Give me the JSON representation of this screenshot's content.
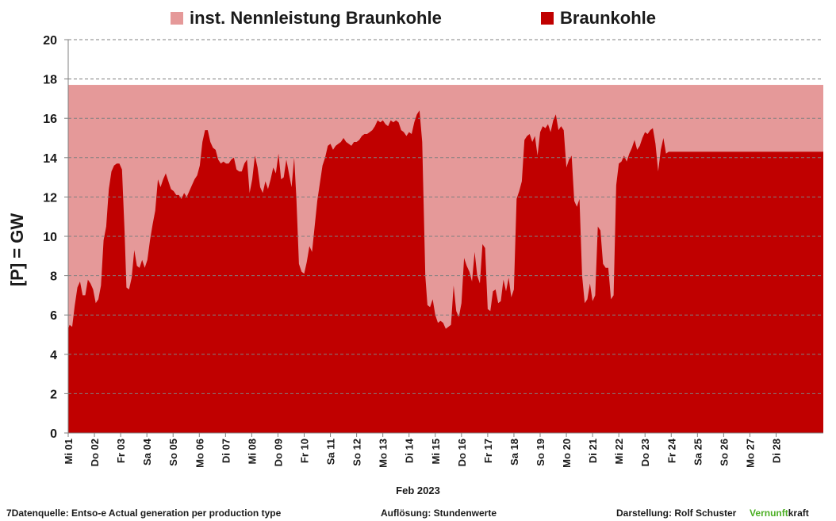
{
  "legend": {
    "capacity_label": "inst. Nennleistung Braunkohle",
    "generation_label": "Braunkohle",
    "capacity_color": "#e59999",
    "generation_color": "#c00000"
  },
  "footer": {
    "source": "7Datenquelle: Entso-e  Actual generation per production type",
    "resolution": "Auflösung: Stundenwerte",
    "author": "Darstellung:  Rolf Schuster",
    "brand_green": "Vernunft",
    "brand_rest": "kraft"
  },
  "chart_data": {
    "type": "area",
    "xlabel": "Feb 2023",
    "ylabel": "[P]   =  GW",
    "ylim": [
      0,
      20
    ],
    "yticks": [
      0,
      2,
      4,
      6,
      8,
      10,
      12,
      14,
      16,
      18,
      20
    ],
    "grid": "horizontal dashed",
    "legend_position": "top",
    "x_days": 28.8,
    "day_labels": [
      "Mi 01",
      "Do 02",
      "Fr 03",
      "Sa 04",
      "So 05",
      "Mo 06",
      "Di 07",
      "Mi 08",
      "Do 09",
      "Fr 10",
      "Sa 11",
      "So 12",
      "Mo 13",
      "Di 14",
      "Mi 15",
      "Do 16",
      "Fr 17",
      "Sa 18",
      "So 19",
      "Mo 20",
      "Di 21",
      "Mi 22",
      "Do 23",
      "Fr 24",
      "Sa 25",
      "So 26",
      "Mo 27",
      "Di 28"
    ],
    "series": [
      {
        "name": "inst. Nennleistung Braunkohle",
        "type": "constant",
        "value": 17.7
      },
      {
        "name": "Braunkohle",
        "x_unit": "days since 2023-02-01 00:00",
        "points": [
          [
            0.0,
            5.3
          ],
          [
            0.05,
            5.5
          ],
          [
            0.15,
            5.4
          ],
          [
            0.25,
            6.5
          ],
          [
            0.35,
            7.4
          ],
          [
            0.45,
            7.7
          ],
          [
            0.55,
            7.0
          ],
          [
            0.65,
            7.0
          ],
          [
            0.75,
            7.8
          ],
          [
            0.85,
            7.6
          ],
          [
            0.95,
            7.3
          ],
          [
            1.05,
            6.6
          ],
          [
            1.15,
            6.8
          ],
          [
            1.25,
            7.5
          ],
          [
            1.35,
            9.8
          ],
          [
            1.45,
            10.5
          ],
          [
            1.55,
            12.4
          ],
          [
            1.65,
            13.3
          ],
          [
            1.75,
            13.6
          ],
          [
            1.85,
            13.7
          ],
          [
            1.95,
            13.7
          ],
          [
            2.05,
            13.4
          ],
          [
            2.15,
            10.2
          ],
          [
            2.22,
            7.4
          ],
          [
            2.32,
            7.3
          ],
          [
            2.42,
            7.9
          ],
          [
            2.52,
            9.3
          ],
          [
            2.62,
            8.5
          ],
          [
            2.72,
            8.4
          ],
          [
            2.82,
            8.8
          ],
          [
            2.92,
            8.4
          ],
          [
            3.02,
            8.8
          ],
          [
            3.12,
            9.8
          ],
          [
            3.22,
            10.6
          ],
          [
            3.32,
            11.3
          ],
          [
            3.42,
            12.9
          ],
          [
            3.52,
            12.5
          ],
          [
            3.62,
            12.9
          ],
          [
            3.72,
            13.2
          ],
          [
            3.82,
            12.8
          ],
          [
            3.92,
            12.4
          ],
          [
            4.02,
            12.3
          ],
          [
            4.12,
            12.1
          ],
          [
            4.22,
            12.1
          ],
          [
            4.32,
            11.9
          ],
          [
            4.42,
            12.2
          ],
          [
            4.52,
            12.0
          ],
          [
            4.62,
            12.3
          ],
          [
            4.72,
            12.6
          ],
          [
            4.82,
            12.9
          ],
          [
            4.92,
            13.1
          ],
          [
            5.02,
            13.6
          ],
          [
            5.12,
            14.8
          ],
          [
            5.22,
            15.4
          ],
          [
            5.32,
            15.4
          ],
          [
            5.42,
            14.8
          ],
          [
            5.52,
            14.5
          ],
          [
            5.62,
            14.4
          ],
          [
            5.72,
            13.9
          ],
          [
            5.82,
            13.7
          ],
          [
            5.92,
            13.8
          ],
          [
            6.02,
            13.7
          ],
          [
            6.12,
            13.7
          ],
          [
            6.22,
            13.9
          ],
          [
            6.32,
            14.0
          ],
          [
            6.42,
            13.4
          ],
          [
            6.52,
            13.3
          ],
          [
            6.62,
            13.3
          ],
          [
            6.72,
            13.7
          ],
          [
            6.82,
            13.9
          ],
          [
            6.92,
            12.2
          ],
          [
            7.02,
            12.9
          ],
          [
            7.12,
            14.1
          ],
          [
            7.22,
            13.5
          ],
          [
            7.32,
            12.5
          ],
          [
            7.42,
            12.2
          ],
          [
            7.52,
            12.8
          ],
          [
            7.62,
            12.4
          ],
          [
            7.72,
            12.9
          ],
          [
            7.82,
            13.5
          ],
          [
            7.92,
            13.2
          ],
          [
            8.02,
            14.2
          ],
          [
            8.12,
            12.9
          ],
          [
            8.22,
            13.0
          ],
          [
            8.32,
            13.9
          ],
          [
            8.42,
            13.2
          ],
          [
            8.52,
            12.5
          ],
          [
            8.62,
            14.0
          ],
          [
            8.7,
            12.0
          ],
          [
            8.8,
            8.6
          ],
          [
            8.9,
            8.2
          ],
          [
            9.0,
            8.1
          ],
          [
            9.1,
            8.7
          ],
          [
            9.2,
            9.5
          ],
          [
            9.3,
            9.2
          ],
          [
            9.4,
            10.5
          ],
          [
            9.5,
            11.8
          ],
          [
            9.6,
            12.7
          ],
          [
            9.7,
            13.6
          ],
          [
            9.8,
            14.0
          ],
          [
            9.9,
            14.6
          ],
          [
            10.0,
            14.7
          ],
          [
            10.1,
            14.4
          ],
          [
            10.2,
            14.6
          ],
          [
            10.3,
            14.7
          ],
          [
            10.4,
            14.8
          ],
          [
            10.5,
            15.0
          ],
          [
            10.6,
            14.8
          ],
          [
            10.7,
            14.7
          ],
          [
            10.8,
            14.6
          ],
          [
            10.9,
            14.8
          ],
          [
            11.0,
            14.8
          ],
          [
            11.1,
            14.9
          ],
          [
            11.2,
            15.1
          ],
          [
            11.3,
            15.2
          ],
          [
            11.4,
            15.2
          ],
          [
            11.5,
            15.3
          ],
          [
            11.6,
            15.4
          ],
          [
            11.7,
            15.6
          ],
          [
            11.8,
            15.9
          ],
          [
            11.9,
            15.8
          ],
          [
            12.0,
            15.9
          ],
          [
            12.1,
            15.7
          ],
          [
            12.2,
            15.6
          ],
          [
            12.3,
            15.9
          ],
          [
            12.4,
            15.8
          ],
          [
            12.5,
            15.9
          ],
          [
            12.6,
            15.8
          ],
          [
            12.7,
            15.4
          ],
          [
            12.8,
            15.3
          ],
          [
            12.9,
            15.1
          ],
          [
            13.0,
            15.3
          ],
          [
            13.1,
            15.2
          ],
          [
            13.2,
            15.8
          ],
          [
            13.3,
            16.2
          ],
          [
            13.4,
            16.4
          ],
          [
            13.5,
            14.8
          ],
          [
            13.55,
            12.0
          ],
          [
            13.62,
            8.0
          ],
          [
            13.7,
            6.5
          ],
          [
            13.8,
            6.4
          ],
          [
            13.9,
            6.8
          ],
          [
            14.0,
            6.0
          ],
          [
            14.1,
            5.6
          ],
          [
            14.2,
            5.7
          ],
          [
            14.3,
            5.6
          ],
          [
            14.4,
            5.3
          ],
          [
            14.5,
            5.4
          ],
          [
            14.6,
            5.5
          ],
          [
            14.7,
            7.5
          ],
          [
            14.8,
            6.2
          ],
          [
            14.9,
            5.9
          ],
          [
            15.0,
            6.6
          ],
          [
            15.1,
            8.9
          ],
          [
            15.2,
            8.5
          ],
          [
            15.3,
            8.2
          ],
          [
            15.4,
            7.7
          ],
          [
            15.5,
            9.2
          ],
          [
            15.6,
            8.0
          ],
          [
            15.7,
            7.6
          ],
          [
            15.8,
            9.6
          ],
          [
            15.9,
            9.4
          ],
          [
            16.0,
            6.3
          ],
          [
            16.1,
            6.2
          ],
          [
            16.2,
            7.2
          ],
          [
            16.3,
            7.3
          ],
          [
            16.4,
            6.6
          ],
          [
            16.5,
            6.7
          ],
          [
            16.6,
            7.8
          ],
          [
            16.7,
            7.2
          ],
          [
            16.8,
            7.9
          ],
          [
            16.9,
            6.9
          ],
          [
            17.0,
            7.3
          ],
          [
            17.1,
            11.9
          ],
          [
            17.2,
            12.3
          ],
          [
            17.3,
            12.8
          ],
          [
            17.4,
            14.9
          ],
          [
            17.5,
            15.1
          ],
          [
            17.6,
            15.2
          ],
          [
            17.7,
            14.8
          ],
          [
            17.8,
            15.1
          ],
          [
            17.9,
            14.1
          ],
          [
            18.0,
            15.3
          ],
          [
            18.1,
            15.6
          ],
          [
            18.2,
            15.5
          ],
          [
            18.3,
            15.7
          ],
          [
            18.4,
            15.3
          ],
          [
            18.5,
            15.9
          ],
          [
            18.6,
            16.2
          ],
          [
            18.7,
            15.4
          ],
          [
            18.8,
            15.6
          ],
          [
            18.9,
            15.4
          ],
          [
            19.0,
            13.5
          ],
          [
            19.1,
            13.9
          ],
          [
            19.2,
            14.1
          ],
          [
            19.3,
            11.8
          ],
          [
            19.4,
            11.5
          ],
          [
            19.5,
            11.9
          ],
          [
            19.6,
            8.0
          ],
          [
            19.7,
            6.6
          ],
          [
            19.8,
            6.8
          ],
          [
            19.9,
            7.6
          ],
          [
            20.0,
            6.7
          ],
          [
            20.1,
            7.0
          ],
          [
            20.2,
            10.5
          ],
          [
            20.3,
            10.3
          ],
          [
            20.4,
            8.6
          ],
          [
            20.5,
            8.4
          ],
          [
            20.6,
            8.4
          ],
          [
            20.7,
            6.8
          ],
          [
            20.8,
            7.0
          ],
          [
            20.9,
            12.6
          ],
          [
            21.0,
            13.7
          ],
          [
            21.1,
            13.8
          ],
          [
            21.2,
            14.1
          ],
          [
            21.3,
            13.8
          ],
          [
            21.4,
            14.2
          ],
          [
            21.5,
            14.5
          ],
          [
            21.6,
            14.9
          ],
          [
            21.7,
            14.4
          ],
          [
            21.8,
            14.6
          ],
          [
            21.9,
            15.0
          ],
          [
            22.0,
            15.3
          ],
          [
            22.1,
            15.2
          ],
          [
            22.2,
            15.4
          ],
          [
            22.3,
            15.5
          ],
          [
            22.4,
            14.7
          ],
          [
            22.5,
            13.3
          ],
          [
            22.6,
            14.4
          ],
          [
            22.7,
            15.0
          ],
          [
            22.8,
            14.2
          ],
          [
            22.9,
            14.3
          ]
        ]
      }
    ]
  }
}
